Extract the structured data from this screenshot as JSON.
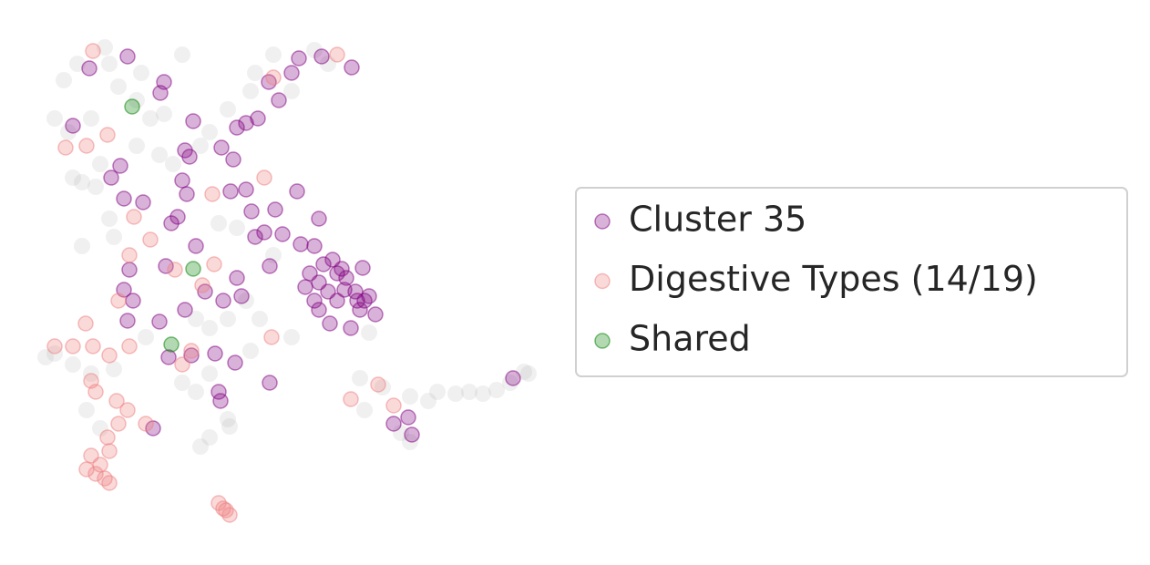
{
  "chart_data": {
    "type": "scatter",
    "xlim": [
      0,
      600
    ],
    "ylim": [
      0,
      600
    ],
    "legend": "right",
    "series": [
      {
        "color": "#999999",
        "x": [
          115,
          85,
          130,
          150,
          60,
          100,
          165,
          180,
          150,
          175,
          110,
          90,
          105,
          190,
          230,
          220,
          250,
          275,
          280,
          300,
          345,
          360,
          120,
          125,
          90,
          240,
          260,
          300,
          230,
          250,
          285,
          270,
          215,
          160,
          60,
          50,
          80,
          100,
          125,
          200,
          215,
          230,
          275,
          320,
          405,
          395,
          420,
          450,
          470,
          480,
          500,
          515,
          530,
          545,
          560,
          575,
          580,
          440,
          450,
          400,
          250,
          252,
          220,
          230,
          95,
          110,
          80,
          75,
          120,
          200,
          320,
          155,
          70
        ],
        "values": [
          548,
          530,
          505,
          490,
          470,
          470,
          470,
          475,
          440,
          430,
          420,
          400,
          395,
          420,
          455,
          440,
          480,
          500,
          520,
          540,
          545,
          530,
          360,
          340,
          330,
          355,
          350,
          320,
          240,
          250,
          250,
          270,
          250,
          230,
          212,
          208,
          200,
          190,
          195,
          180,
          170,
          190,
          215,
          230,
          235,
          185,
          175,
          165,
          160,
          170,
          168,
          170,
          168,
          172,
          180,
          192,
          190,
          125,
          115,
          150,
          140,
          132,
          110,
          120,
          150,
          130,
          405,
          455,
          530,
          540,
          500,
          520,
          512
        ]
      },
      {
        "name": "Cluster 35",
        "color": "#800080",
        "x": [
          140,
          98,
          180,
          176,
          212,
          80,
          203,
          208,
          243,
          256,
          122,
          132,
          136,
          157,
          200,
          205,
          188,
          195,
          215,
          182,
          142,
          136,
          146,
          140,
          175,
          203,
          225,
          260,
          265,
          245,
          185,
          210,
          236,
          258,
          240,
          242,
          296,
          296,
          326,
          350,
          310,
          290,
          280,
          330,
          345,
          340,
          350,
          360,
          370,
          380,
          390,
          400,
          405,
          395,
          385,
          362,
          350,
          345,
          335,
          355,
          365,
          375,
          398,
          412,
          260,
          270,
          283,
          295,
          320,
          328,
          353,
          386,
          306,
          253,
          270,
          276,
          302,
          370,
          378,
          392,
          563,
          432,
          448,
          452,
          168
        ],
        "values": [
          538,
          525,
          510,
          498,
          467,
          462,
          435,
          428,
          438,
          425,
          405,
          418,
          382,
          378,
          402,
          387,
          355,
          362,
          330,
          308,
          304,
          282,
          270,
          248,
          247,
          260,
          280,
          295,
          275,
          270,
          208,
          210,
          212,
          202,
          170,
          160,
          180,
          308,
          390,
          360,
          343,
          345,
          340,
          332,
          330,
          300,
          290,
          280,
          300,
          295,
          280,
          270,
          275,
          260,
          240,
          245,
          260,
          270,
          285,
          310,
          315,
          305,
          306,
          255,
          460,
          465,
          470,
          510,
          520,
          536,
          538,
          526,
          490,
          390,
          392,
          368,
          370,
          270,
          282,
          270,
          185,
          135,
          142,
          123,
          130
        ]
      },
      {
        "name": "Digestive Types (14/19)",
        "color": "#f08080",
        "x": [
          102,
          370,
          300,
          72,
          95,
          118,
          290,
          233,
          147,
          165,
          235,
          142,
          130,
          94,
          60,
          80,
          102,
          120,
          142,
          200,
          210,
          100,
          105,
          128,
          130,
          140,
          160,
          118,
          120,
          100,
          95,
          110,
          115,
          105,
          120,
          240,
          248,
          252,
          245,
          385,
          415,
          432,
          298,
          222,
          192
        ],
        "values": [
          544,
          540,
          515,
          438,
          440,
          452,
          405,
          387,
          362,
          337,
          310,
          320,
          270,
          245,
          220,
          220,
          220,
          210,
          220,
          200,
          215,
          182,
          170,
          160,
          135,
          150,
          135,
          120,
          105,
          100,
          85,
          90,
          75,
          80,
          70,
          48,
          40,
          35,
          42,
          162,
          178,
          155,
          230,
          287,
          304
        ]
      },
      {
        "name": "Shared",
        "color": "#008000",
        "x": [
          145,
          212,
          188
        ],
        "values": [
          483,
          305,
          222
        ]
      }
    ]
  }
}
